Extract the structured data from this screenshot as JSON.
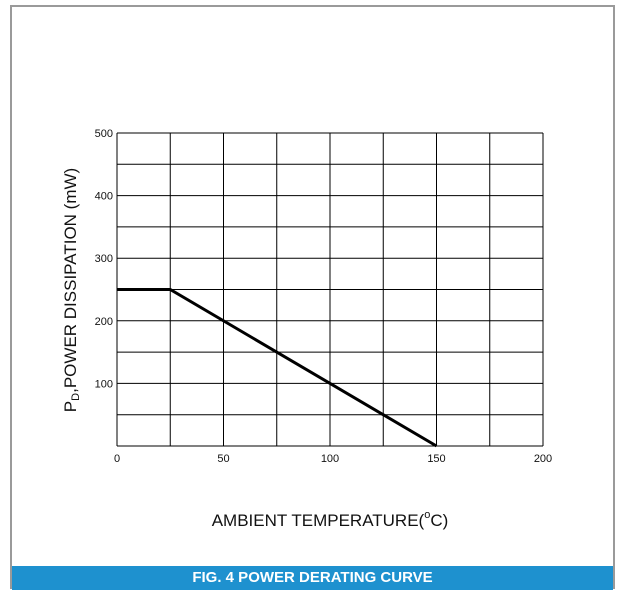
{
  "chart_data": {
    "type": "line",
    "xlabel_main": "AMBIENT TEMPERATURE(",
    "xlabel_sup": "o",
    "xlabel_end": "C)",
    "ylabel_p": "P",
    "ylabel_sub": "D",
    "ylabel_rest": ",POWER DISSIPATION (mW)",
    "xlim": [
      0,
      200
    ],
    "ylim": [
      0,
      500
    ],
    "x_ticks": [
      0,
      50,
      100,
      150,
      200
    ],
    "y_ticks": [
      100,
      200,
      300,
      400,
      500
    ],
    "x_grid_step": 25,
    "y_grid_step": 50,
    "grid": true,
    "series": [
      {
        "x": [
          0,
          25,
          150
        ],
        "y": [
          250,
          250,
          0
        ]
      }
    ]
  },
  "caption": "FIG. 4 POWER DERATING CURVE"
}
